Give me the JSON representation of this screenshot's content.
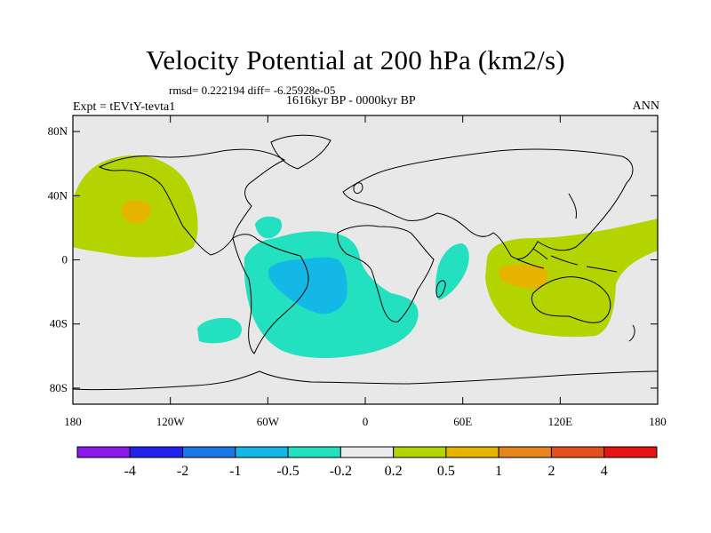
{
  "title": "Velocity Potential at 200 hPa (km2/s)",
  "stats": "rmsd= 0.222194  diff= -6.25928e-05",
  "period": "1616kyr BP - 0000kyr BP",
  "experiment": "Expt = tEVtY-tevta1",
  "season": "ANN",
  "map": {
    "projection": "cylindrical equidistant",
    "lon_range": [
      -180,
      180
    ],
    "lat_range": [
      -90,
      90
    ],
    "x_ticks": [
      "180",
      "120W",
      "60W",
      "0",
      "60E",
      "120E",
      "180"
    ],
    "y_ticks": [
      "80N",
      "40N",
      "0",
      "40S",
      "80S"
    ],
    "background_color": "#e8e8e8"
  },
  "colorbar": {
    "colors": [
      "#8c1aec",
      "#2222ee",
      "#1a78e6",
      "#14b8e6",
      "#22e0c0",
      "#ebebeb",
      "#b4d400",
      "#e6b400",
      "#e6841e",
      "#e6501e",
      "#e61414"
    ],
    "labels": [
      "-4",
      "-2",
      "-1",
      "-0.5",
      "-0.2",
      "0.2",
      "0.5",
      "1",
      "2",
      "4"
    ]
  },
  "regions": [
    {
      "name": "north-pacific-positive",
      "level": "0.2 to 0.5",
      "color": "#b4d400"
    },
    {
      "name": "north-pacific-core",
      "level": "0.5 to 1",
      "color": "#e6b400"
    },
    {
      "name": "south-america-atlantic-negative",
      "level": "-0.5 to -0.2",
      "color": "#22e0c0"
    },
    {
      "name": "south-america-core",
      "level": "-1 to -0.5",
      "color": "#14b8e6"
    },
    {
      "name": "east-africa-negative",
      "level": "-0.5 to -0.2",
      "color": "#22e0c0"
    },
    {
      "name": "south-pacific-negative",
      "level": "-0.5 to -0.2",
      "color": "#22e0c0"
    },
    {
      "name": "maritime-continent-positive",
      "level": "0.2 to 0.5",
      "color": "#b4d400"
    },
    {
      "name": "maritime-continent-core",
      "level": "0.5 to 1",
      "color": "#e6b400"
    }
  ]
}
